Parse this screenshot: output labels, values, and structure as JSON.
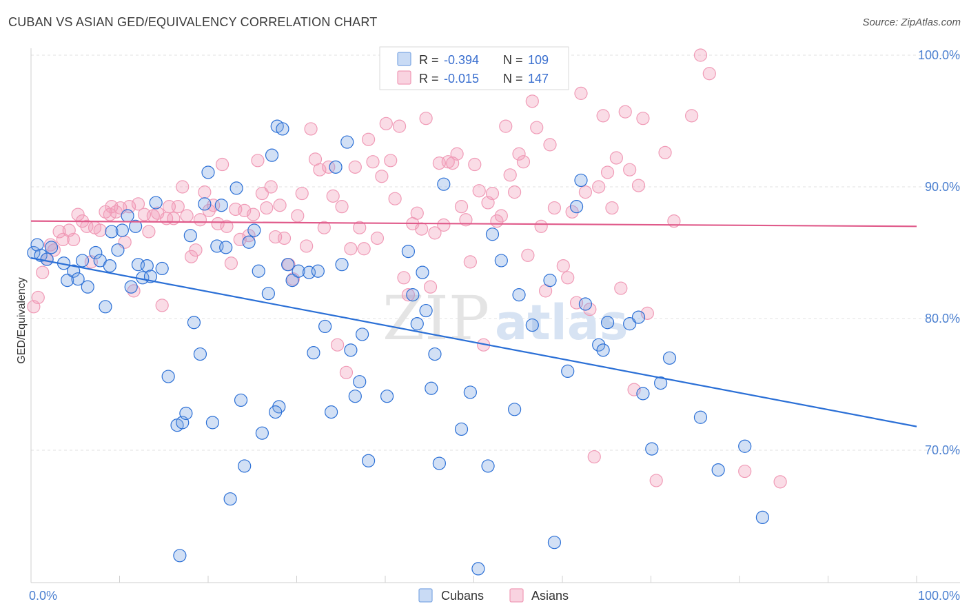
{
  "title": "CUBAN VS ASIAN GED/EQUIVALENCY CORRELATION CHART",
  "source": "Source: ZipAtlas.com",
  "watermark": {
    "zip": "ZIP",
    "atlas": "atlas"
  },
  "colors": {
    "cubans": "#7da7e3",
    "cubans_line": "#2a6fd6",
    "asians": "#f09ab6",
    "asians_line": "#e05a8a",
    "tick": "#4a7fd0",
    "grid": "#e2e2e2"
  },
  "legend": {
    "rows": [
      {
        "r_label": "R =",
        "r_value": "-0.394",
        "n_label": "N =",
        "n_value": "109"
      },
      {
        "r_label": "R =",
        "r_value": "-0.015",
        "n_label": "N =",
        "n_value": "147"
      }
    ]
  },
  "bottom_legend": [
    "Cubans",
    "Asians"
  ],
  "chart_data": {
    "type": "scatter",
    "xlabel": "",
    "ylabel": "GED/Equivalency",
    "xlim": [
      0,
      100
    ],
    "ylim": [
      60,
      102
    ],
    "x_tick_labels": [
      "0.0%",
      "100.0%"
    ],
    "y_ticks": [
      70,
      80,
      90,
      100
    ],
    "y_tick_labels": [
      "70.0%",
      "80.0%",
      "90.0%",
      "100.0%"
    ],
    "grid": true,
    "legend_position": "top-center",
    "series": [
      {
        "name": "Cubans",
        "trend": {
          "x": [
            0,
            100
          ],
          "y": [
            84.6,
            71.8
          ]
        },
        "points": [
          [
            0.3,
            85.0
          ],
          [
            0.7,
            85.6
          ],
          [
            1.1,
            84.8
          ],
          [
            1.8,
            84.5
          ],
          [
            2.3,
            85.4
          ],
          [
            3.7,
            84.2
          ],
          [
            4.1,
            82.9
          ],
          [
            4.8,
            83.6
          ],
          [
            5.3,
            83.0
          ],
          [
            5.8,
            84.4
          ],
          [
            6.4,
            82.4
          ],
          [
            7.3,
            85.0
          ],
          [
            7.8,
            84.4
          ],
          [
            8.4,
            80.9
          ],
          [
            8.9,
            84.0
          ],
          [
            9.1,
            86.6
          ],
          [
            9.8,
            85.2
          ],
          [
            10.3,
            86.7
          ],
          [
            10.9,
            87.8
          ],
          [
            11.3,
            82.4
          ],
          [
            11.8,
            87.0
          ],
          [
            12.1,
            84.1
          ],
          [
            12.6,
            83.1
          ],
          [
            13.1,
            84.0
          ],
          [
            13.5,
            83.2
          ],
          [
            14.1,
            88.8
          ],
          [
            14.8,
            83.8
          ],
          [
            15.5,
            75.6
          ],
          [
            16.5,
            71.9
          ],
          [
            16.8,
            62.0
          ],
          [
            17.1,
            72.1
          ],
          [
            17.5,
            72.8
          ],
          [
            18.0,
            86.3
          ],
          [
            18.4,
            79.7
          ],
          [
            19.1,
            77.3
          ],
          [
            19.6,
            88.7
          ],
          [
            20.0,
            91.1
          ],
          [
            20.5,
            72.1
          ],
          [
            21.0,
            85.5
          ],
          [
            21.5,
            88.6
          ],
          [
            22.0,
            85.4
          ],
          [
            22.5,
            66.3
          ],
          [
            23.2,
            89.9
          ],
          [
            23.7,
            73.8
          ],
          [
            24.1,
            68.8
          ],
          [
            24.6,
            85.8
          ],
          [
            25.2,
            86.7
          ],
          [
            25.7,
            83.6
          ],
          [
            26.1,
            71.3
          ],
          [
            26.8,
            81.9
          ],
          [
            27.2,
            92.4
          ],
          [
            27.8,
            94.6
          ],
          [
            28.0,
            73.3
          ],
          [
            28.4,
            94.4
          ],
          [
            29.0,
            84.1
          ],
          [
            29.5,
            82.9
          ],
          [
            30.2,
            83.6
          ],
          [
            31.4,
            83.5
          ],
          [
            31.9,
            77.4
          ],
          [
            32.4,
            83.6
          ],
          [
            33.2,
            79.4
          ],
          [
            33.9,
            72.9
          ],
          [
            34.4,
            91.5
          ],
          [
            35.1,
            84.1
          ],
          [
            35.7,
            93.4
          ],
          [
            36.1,
            77.6
          ],
          [
            37.1,
            75.2
          ],
          [
            37.4,
            78.8
          ],
          [
            40.2,
            74.1
          ],
          [
            42.6,
            85.1
          ],
          [
            43.1,
            81.8
          ],
          [
            43.6,
            79.6
          ],
          [
            44.2,
            83.5
          ],
          [
            44.6,
            80.6
          ],
          [
            45.2,
            74.7
          ],
          [
            45.6,
            77.3
          ],
          [
            46.1,
            69.0
          ],
          [
            46.6,
            90.2
          ],
          [
            48.6,
            71.6
          ],
          [
            49.6,
            74.4
          ],
          [
            50.5,
            61.0
          ],
          [
            51.6,
            68.8
          ],
          [
            52.1,
            86.4
          ],
          [
            53.1,
            84.4
          ],
          [
            54.6,
            73.1
          ],
          [
            55.1,
            81.8
          ],
          [
            56.6,
            79.5
          ],
          [
            58.6,
            82.9
          ],
          [
            60.6,
            76.0
          ],
          [
            61.6,
            88.5
          ],
          [
            62.1,
            90.5
          ],
          [
            62.6,
            81.1
          ],
          [
            64.1,
            78.0
          ],
          [
            64.6,
            77.6
          ],
          [
            65.1,
            79.7
          ],
          [
            67.6,
            79.6
          ],
          [
            68.6,
            80.1
          ],
          [
            69.1,
            74.3
          ],
          [
            70.1,
            70.1
          ],
          [
            71.1,
            75.1
          ],
          [
            72.1,
            77.0
          ],
          [
            75.6,
            72.5
          ],
          [
            77.6,
            68.5
          ],
          [
            80.6,
            70.3
          ],
          [
            82.6,
            64.9
          ],
          [
            59.1,
            63.0
          ],
          [
            36.6,
            74.1
          ],
          [
            38.1,
            69.2
          ],
          [
            27.6,
            72.9
          ]
        ]
      },
      {
        "name": "Asians",
        "trend": {
          "x": [
            0,
            100
          ],
          "y": [
            87.4,
            87.0
          ]
        },
        "points": [
          [
            0.3,
            80.9
          ],
          [
            0.8,
            81.6
          ],
          [
            1.3,
            83.5
          ],
          [
            1.8,
            84.5
          ],
          [
            2.2,
            85.6
          ],
          [
            2.6,
            85.2
          ],
          [
            3.2,
            86.6
          ],
          [
            3.6,
            86.0
          ],
          [
            4.3,
            86.7
          ],
          [
            4.8,
            86.0
          ],
          [
            5.3,
            87.9
          ],
          [
            5.8,
            87.4
          ],
          [
            6.3,
            87.0
          ],
          [
            6.8,
            84.3
          ],
          [
            7.2,
            86.9
          ],
          [
            7.8,
            86.7
          ],
          [
            8.4,
            88.1
          ],
          [
            8.9,
            87.9
          ],
          [
            9.1,
            88.5
          ],
          [
            9.6,
            88.1
          ],
          [
            10.1,
            88.4
          ],
          [
            10.6,
            85.8
          ],
          [
            11.1,
            88.5
          ],
          [
            11.6,
            82.1
          ],
          [
            12.1,
            88.7
          ],
          [
            12.8,
            87.9
          ],
          [
            13.3,
            86.6
          ],
          [
            13.8,
            87.8
          ],
          [
            14.3,
            88.0
          ],
          [
            14.8,
            81.0
          ],
          [
            15.3,
            87.6
          ],
          [
            15.6,
            88.5
          ],
          [
            16.1,
            87.6
          ],
          [
            16.6,
            88.5
          ],
          [
            17.1,
            90.0
          ],
          [
            17.6,
            87.8
          ],
          [
            18.1,
            84.7
          ],
          [
            18.6,
            85.2
          ],
          [
            19.1,
            87.5
          ],
          [
            19.6,
            89.6
          ],
          [
            20.1,
            88.2
          ],
          [
            20.6,
            88.6
          ],
          [
            21.1,
            87.2
          ],
          [
            21.6,
            91.7
          ],
          [
            22.1,
            87.0
          ],
          [
            22.6,
            84.2
          ],
          [
            23.1,
            88.3
          ],
          [
            23.6,
            86.0
          ],
          [
            24.1,
            88.2
          ],
          [
            24.6,
            86.3
          ],
          [
            25.1,
            87.9
          ],
          [
            25.6,
            92.0
          ],
          [
            26.1,
            89.5
          ],
          [
            26.6,
            88.4
          ],
          [
            27.1,
            90.0
          ],
          [
            27.6,
            86.2
          ],
          [
            28.1,
            88.6
          ],
          [
            28.6,
            86.1
          ],
          [
            29.1,
            84.1
          ],
          [
            29.6,
            83.0
          ],
          [
            30.1,
            87.8
          ],
          [
            30.6,
            89.5
          ],
          [
            31.1,
            85.5
          ],
          [
            31.6,
            94.4
          ],
          [
            32.1,
            92.1
          ],
          [
            32.6,
            91.3
          ],
          [
            33.1,
            86.9
          ],
          [
            33.6,
            91.5
          ],
          [
            34.1,
            89.3
          ],
          [
            34.6,
            78.0
          ],
          [
            35.1,
            88.5
          ],
          [
            35.6,
            75.9
          ],
          [
            36.1,
            85.3
          ],
          [
            36.6,
            91.5
          ],
          [
            37.1,
            86.9
          ],
          [
            37.6,
            85.3
          ],
          [
            38.1,
            93.6
          ],
          [
            38.6,
            91.9
          ],
          [
            39.1,
            86.1
          ],
          [
            39.6,
            90.8
          ],
          [
            40.1,
            94.8
          ],
          [
            40.6,
            92.0
          ],
          [
            41.1,
            89.1
          ],
          [
            41.6,
            94.6
          ],
          [
            42.1,
            83.1
          ],
          [
            42.6,
            81.8
          ],
          [
            43.1,
            87.2
          ],
          [
            43.6,
            88.0
          ],
          [
            44.1,
            86.8
          ],
          [
            44.6,
            95.2
          ],
          [
            45.1,
            82.4
          ],
          [
            45.6,
            86.5
          ],
          [
            46.1,
            91.8
          ],
          [
            46.6,
            87.1
          ],
          [
            47.1,
            91.9
          ],
          [
            47.6,
            91.8
          ],
          [
            48.1,
            92.5
          ],
          [
            48.6,
            88.5
          ],
          [
            49.1,
            87.5
          ],
          [
            49.6,
            84.3
          ],
          [
            50.1,
            91.7
          ],
          [
            50.6,
            89.7
          ],
          [
            51.1,
            78.0
          ],
          [
            51.6,
            88.8
          ],
          [
            52.1,
            89.5
          ],
          [
            52.6,
            87.4
          ],
          [
            53.1,
            87.8
          ],
          [
            53.6,
            94.6
          ],
          [
            54.1,
            90.9
          ],
          [
            54.6,
            89.6
          ],
          [
            55.1,
            92.5
          ],
          [
            55.6,
            91.9
          ],
          [
            56.1,
            84.8
          ],
          [
            56.6,
            96.5
          ],
          [
            57.1,
            94.5
          ],
          [
            57.6,
            87.0
          ],
          [
            58.1,
            82.1
          ],
          [
            58.6,
            93.2
          ],
          [
            59.1,
            88.4
          ],
          [
            60.1,
            84.0
          ],
          [
            60.6,
            83.1
          ],
          [
            61.1,
            88.1
          ],
          [
            61.6,
            81.2
          ],
          [
            62.1,
            97.1
          ],
          [
            62.6,
            89.6
          ],
          [
            63.1,
            80.7
          ],
          [
            63.6,
            69.5
          ],
          [
            64.1,
            90.0
          ],
          [
            64.6,
            95.4
          ],
          [
            65.1,
            91.1
          ],
          [
            65.6,
            88.4
          ],
          [
            66.1,
            92.2
          ],
          [
            66.6,
            82.3
          ],
          [
            67.1,
            95.7
          ],
          [
            67.6,
            91.3
          ],
          [
            68.1,
            74.6
          ],
          [
            68.6,
            90.1
          ],
          [
            69.1,
            95.2
          ],
          [
            69.6,
            80.4
          ],
          [
            70.6,
            67.7
          ],
          [
            71.6,
            92.6
          ],
          [
            72.6,
            87.4
          ],
          [
            74.6,
            95.4
          ],
          [
            75.6,
            100.0
          ],
          [
            76.6,
            98.6
          ],
          [
            80.6,
            68.4
          ],
          [
            84.6,
            67.6
          ]
        ]
      }
    ]
  }
}
